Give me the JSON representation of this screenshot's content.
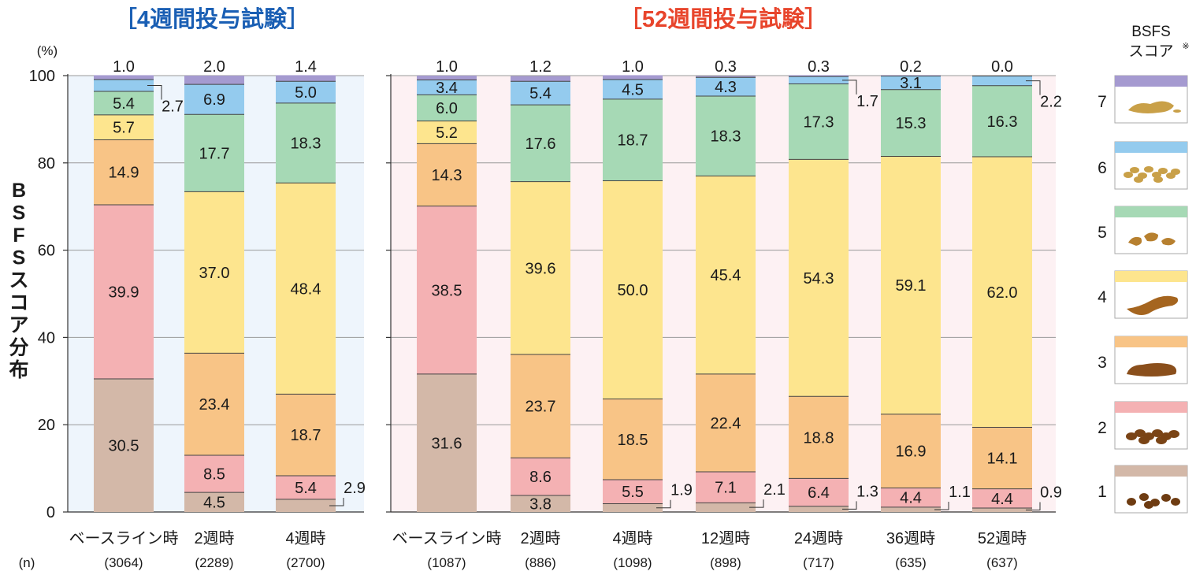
{
  "chart_data": [
    {
      "type": "bar",
      "stacked": true,
      "title": "［4週間投与試験］",
      "title_color": "#1a5fb4",
      "ylabel": "BSFSスコア分布",
      "yunit": "(%)",
      "n_label": "(n)",
      "ylim": [
        0,
        100
      ],
      "yticks": [
        0,
        20,
        40,
        60,
        80,
        100
      ],
      "background": "#eef5fc",
      "categories": [
        "ベースライン時",
        "2週時",
        "4週時"
      ],
      "n": [
        "(3064)",
        "(2289)",
        "(2700)"
      ],
      "series": [
        {
          "name": "1",
          "values": [
            30.5,
            4.5,
            2.9
          ]
        },
        {
          "name": "2",
          "values": [
            39.9,
            8.5,
            5.4
          ]
        },
        {
          "name": "3",
          "values": [
            14.9,
            23.4,
            18.7
          ]
        },
        {
          "name": "4",
          "values": [
            5.7,
            37.0,
            48.4
          ]
        },
        {
          "name": "5",
          "values": [
            5.4,
            17.7,
            18.3
          ]
        },
        {
          "name": "6",
          "values": [
            2.7,
            6.9,
            5.0
          ]
        },
        {
          "name": "7",
          "values": [
            1.0,
            2.0,
            1.4
          ]
        }
      ]
    },
    {
      "type": "bar",
      "stacked": true,
      "title": "［52週間投与試験］",
      "title_color": "#e8452c",
      "ylim": [
        0,
        100
      ],
      "background": "#fdf1f3",
      "categories": [
        "ベースライン時",
        "2週時",
        "4週時",
        "12週時",
        "24週時",
        "36週時",
        "52週時"
      ],
      "n": [
        "(1087)",
        "(886)",
        "(1098)",
        "(898)",
        "(717)",
        "(635)",
        "(637)"
      ],
      "series": [
        {
          "name": "1",
          "values": [
            31.6,
            3.8,
            1.9,
            2.1,
            1.3,
            1.1,
            0.9
          ]
        },
        {
          "name": "2",
          "values": [
            38.5,
            8.6,
            5.5,
            7.1,
            6.4,
            4.4,
            4.4
          ]
        },
        {
          "name": "3",
          "values": [
            14.3,
            23.7,
            18.5,
            22.4,
            18.8,
            16.9,
            14.1
          ]
        },
        {
          "name": "4",
          "values": [
            5.2,
            39.6,
            50.0,
            45.4,
            54.3,
            59.1,
            62.0
          ]
        },
        {
          "name": "5",
          "values": [
            6.0,
            17.6,
            18.7,
            18.3,
            17.3,
            15.3,
            16.3
          ]
        },
        {
          "name": "6",
          "values": [
            3.4,
            5.4,
            4.5,
            4.3,
            1.7,
            3.1,
            2.2
          ]
        },
        {
          "name": "7",
          "values": [
            1.0,
            1.2,
            1.0,
            0.3,
            0.3,
            0.2,
            0.0
          ]
        }
      ]
    }
  ],
  "legend": {
    "title_line1": "BSFS",
    "title_line2": "スコア",
    "title_mark": "※",
    "scores": [
      "7",
      "6",
      "5",
      "4",
      "3",
      "2",
      "1"
    ]
  },
  "colors": {
    "1": "#d3b8a8",
    "2": "#f4b1b3",
    "3": "#f8c486",
    "4": "#fde58e",
    "5": "#a6d9b5",
    "6": "#94cbee",
    "7": "#a59ad0",
    "stool": "#a5651f"
  }
}
